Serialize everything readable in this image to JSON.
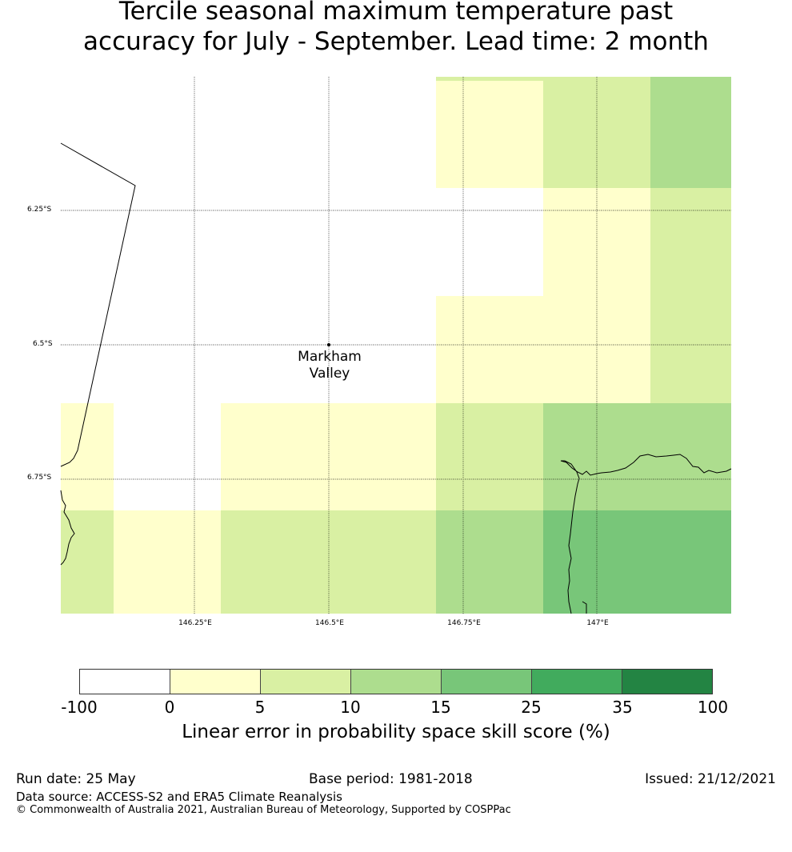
{
  "title": {
    "line1": "Tercile seasonal maximum temperature past",
    "line2": "accuracy for July - September. Lead time: 2 month"
  },
  "map": {
    "lat_labels": [
      "6.25°S",
      "6.5°S",
      "6.75°S"
    ],
    "lon_labels": [
      "146.25°E",
      "146.5°E",
      "146.75°E",
      "147°E"
    ],
    "place": {
      "name_line1": "Markham",
      "name_line2": "Valley"
    },
    "grid_colors": [
      "#ffffff",
      "#ffffcc",
      "#d9f0a3",
      "#addd8e",
      "#78c679",
      "#41ab5d",
      "#238443"
    ]
  },
  "colorbar": {
    "ticks": [
      "-100",
      "0",
      "5",
      "10",
      "15",
      "25",
      "35",
      "100"
    ],
    "label": "Linear error in probability space skill score (%)"
  },
  "footer": {
    "run_date": "Run date: 25 May",
    "base_period": "Base period: 1981-2018",
    "issued": "Issued: 21/12/2021",
    "data_source": "Data source: ACCESS-S2 and ERA5 Climate Reanalysis",
    "copyright": "© Commonwealth of Australia 2021, Australian Bureau of Meteorology, Supported by COSPPac"
  }
}
